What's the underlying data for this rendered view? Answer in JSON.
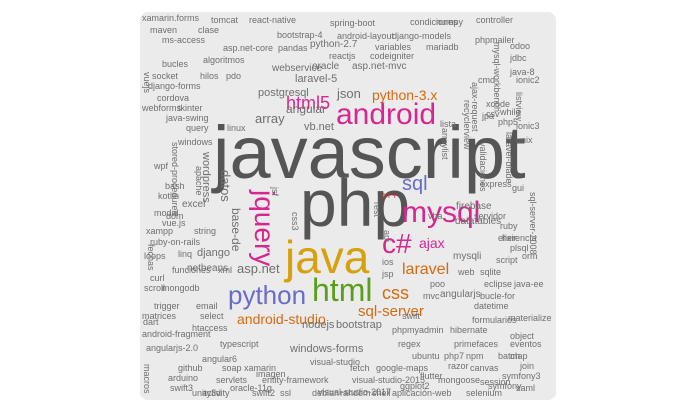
{
  "palette": {
    "gray": "#555555",
    "magenta": "#d6268f",
    "blue": "#6b6bc8",
    "gold": "#d6a10c",
    "green": "#5a9e1a",
    "orange": "#d66a11",
    "red": "#c9322a",
    "small": "#6f6f6f"
  },
  "words": [
    {
      "text": "javascript",
      "c": "gray"
    },
    {
      "text": "php",
      "c": "gray"
    },
    {
      "text": "java",
      "c": "gold"
    },
    {
      "text": "android",
      "c": "magenta"
    },
    {
      "text": "mysql",
      "c": "magenta"
    },
    {
      "text": "html",
      "c": "green"
    },
    {
      "text": "c#",
      "c": "magenta"
    },
    {
      "text": "python",
      "c": "blue"
    },
    {
      "text": "jquery",
      "c": "magenta"
    },
    {
      "text": "sql",
      "c": "blue"
    },
    {
      "text": "css",
      "c": "orange"
    },
    {
      "text": "html5",
      "c": "magenta"
    },
    {
      "text": "laravel",
      "c": "orange"
    },
    {
      "text": "ajax",
      "c": "magenta"
    },
    {
      "text": "sql-server",
      "c": "orange"
    },
    {
      "text": "android-studio",
      "c": "orange"
    },
    {
      "text": "python-3.x",
      "c": "orange"
    },
    {
      "text": "asp.net",
      "c": "small"
    },
    {
      "text": "json",
      "c": "small"
    },
    {
      "text": "array",
      "c": "small"
    },
    {
      "text": "angular",
      "c": "small"
    },
    {
      "text": "datos",
      "c": "small"
    },
    {
      "text": "base-de",
      "c": "small"
    },
    {
      "text": "vb.net",
      "c": "small"
    },
    {
      "text": "c++",
      "c": "red"
    },
    {
      "text": "laravel-5",
      "c": "small"
    },
    {
      "text": "postgresql",
      "c": "small"
    },
    {
      "text": "bootstrap",
      "c": "small"
    },
    {
      "text": "nodejs",
      "c": "small"
    },
    {
      "text": "windows-forms",
      "c": "small"
    },
    {
      "text": "mysqli",
      "c": "small"
    },
    {
      "text": "datatables",
      "c": "small"
    },
    {
      "text": "firebase",
      "c": "small"
    },
    {
      "text": "angularjs",
      "c": "small"
    },
    {
      "text": "django",
      "c": "small"
    },
    {
      "text": "netbeans",
      "c": "small"
    },
    {
      "text": "excel",
      "c": "small"
    },
    {
      "text": "oracle",
      "c": "small"
    },
    {
      "text": "asp.net-mvc",
      "c": "small"
    },
    {
      "text": "webservice",
      "c": "small"
    },
    {
      "text": "python-2.7",
      "c": "small"
    },
    {
      "text": "reactjs",
      "c": "small"
    },
    {
      "text": "codeigniter",
      "c": "small"
    },
    {
      "text": "android-layout",
      "c": "small"
    },
    {
      "text": "django-models",
      "c": "small"
    },
    {
      "text": "bootstrap-4",
      "c": "small"
    },
    {
      "text": "condiciones",
      "c": "small"
    },
    {
      "text": "numpy",
      "c": "small"
    },
    {
      "text": "xamarin.forms",
      "c": "small"
    },
    {
      "text": "tomcat",
      "c": "small"
    },
    {
      "text": "react-native",
      "c": "small"
    },
    {
      "text": "spring-boot",
      "c": "small"
    },
    {
      "text": "maven",
      "c": "small"
    },
    {
      "text": "clase",
      "c": "small"
    },
    {
      "text": "ms-access",
      "c": "small"
    },
    {
      "text": "asp.net-core",
      "c": "small"
    },
    {
      "text": "pandas",
      "c": "small"
    },
    {
      "text": "variables",
      "c": "small"
    },
    {
      "text": "mariadb",
      "c": "small"
    },
    {
      "text": "algoritmos",
      "c": "small"
    },
    {
      "text": "bucles",
      "c": "small"
    },
    {
      "text": "socket",
      "c": "small"
    },
    {
      "text": "django-forms",
      "c": "small"
    },
    {
      "text": "hilos",
      "c": "small"
    },
    {
      "text": "pdo",
      "c": "small"
    },
    {
      "text": "linux",
      "c": "small"
    },
    {
      "text": "cordova",
      "c": "small"
    },
    {
      "text": "webforms",
      "c": "small"
    },
    {
      "text": "tkinter",
      "c": "small"
    },
    {
      "text": "java-swing",
      "c": "small"
    },
    {
      "text": "query",
      "c": "small"
    },
    {
      "text": "windows",
      "c": "small"
    },
    {
      "text": "wordpress",
      "c": "small"
    },
    {
      "text": "apache",
      "c": "small"
    },
    {
      "text": "stored-procedures",
      "c": "small"
    },
    {
      "text": "bash",
      "c": "small"
    },
    {
      "text": "kotlin",
      "c": "small"
    },
    {
      "text": "modal",
      "c": "small"
    },
    {
      "text": "vue.js",
      "c": "small"
    },
    {
      "text": "xampp",
      "c": "small"
    },
    {
      "text": "string",
      "c": "small"
    },
    {
      "text": "ruby-on-rails",
      "c": "small"
    },
    {
      "text": "linq",
      "c": "small"
    },
    {
      "text": "funciones",
      "c": "small"
    },
    {
      "text": "xml",
      "c": "small"
    },
    {
      "text": "mongodb",
      "c": "small"
    },
    {
      "text": "trigger",
      "c": "small"
    },
    {
      "text": "email",
      "c": "small"
    },
    {
      "text": "select",
      "c": "small"
    },
    {
      "text": "matrices",
      "c": "small"
    },
    {
      "text": "htaccess",
      "c": "small"
    },
    {
      "text": "android-fragment",
      "c": "small"
    },
    {
      "text": "angularjs-2.0",
      "c": "small"
    },
    {
      "text": "typescript",
      "c": "small"
    },
    {
      "text": "angular6",
      "c": "small"
    },
    {
      "text": "github",
      "c": "small"
    },
    {
      "text": "soap",
      "c": "small"
    },
    {
      "text": "xamarin",
      "c": "small"
    },
    {
      "text": "arduino",
      "c": "small"
    },
    {
      "text": "swift3",
      "c": "small"
    },
    {
      "text": "servlets",
      "c": "small"
    },
    {
      "text": "unity3d",
      "c": "small"
    },
    {
      "text": "swift2",
      "c": "small"
    },
    {
      "text": "oracle-11g",
      "c": "small"
    },
    {
      "text": "entity-framework",
      "c": "small"
    },
    {
      "text": "visual-studio",
      "c": "small"
    },
    {
      "text": "visual-studio-2017",
      "c": "small"
    },
    {
      "text": "visual-studio-2015",
      "c": "small"
    },
    {
      "text": "google-maps",
      "c": "small"
    },
    {
      "text": "ubuntu",
      "c": "small"
    },
    {
      "text": "shell",
      "c": "small"
    },
    {
      "text": "aplicación-web",
      "c": "small"
    },
    {
      "text": "regex",
      "c": "small"
    },
    {
      "text": "phpmyadmin",
      "c": "small"
    },
    {
      "text": "php7",
      "c": "small"
    },
    {
      "text": "razor",
      "c": "small"
    },
    {
      "text": "canvas",
      "c": "small"
    },
    {
      "text": "mongoose",
      "c": "small"
    },
    {
      "text": "session",
      "c": "small"
    },
    {
      "text": "selenium",
      "c": "small"
    },
    {
      "text": "primefaces",
      "c": "small"
    },
    {
      "text": "npm",
      "c": "small"
    },
    {
      "text": "batch",
      "c": "small"
    },
    {
      "text": "eventos",
      "c": "small"
    },
    {
      "text": "hibernate",
      "c": "small"
    },
    {
      "text": "formularios",
      "c": "small"
    },
    {
      "text": "datetime",
      "c": "small"
    },
    {
      "text": "bucle-for",
      "c": "small"
    },
    {
      "text": "eclipse",
      "c": "small"
    },
    {
      "text": "java-ee",
      "c": "small"
    },
    {
      "text": "sqlite",
      "c": "small"
    },
    {
      "text": "web",
      "c": "small"
    },
    {
      "text": "script",
      "c": "small"
    },
    {
      "text": "servidor",
      "c": "small"
    },
    {
      "text": "ruby",
      "c": "small"
    },
    {
      "text": "express",
      "c": "small"
    },
    {
      "text": "swift",
      "c": "small"
    },
    {
      "text": "poo",
      "c": "small"
    },
    {
      "text": "mvc",
      "c": "small"
    },
    {
      "text": "jsp",
      "c": "small"
    },
    {
      "text": "ios",
      "c": "small"
    },
    {
      "text": "api",
      "c": "small"
    },
    {
      "text": "css3",
      "c": "small"
    },
    {
      "text": "jsf",
      "c": "small"
    },
    {
      "text": "rest",
      "c": "small"
    },
    {
      "text": "xcode",
      "c": "small"
    },
    {
      "text": "csv",
      "c": "small"
    },
    {
      "text": "cmd",
      "c": "small"
    },
    {
      "text": "lista",
      "c": "small"
    },
    {
      "text": "jpa",
      "c": "small"
    },
    {
      "text": "while",
      "c": "small"
    },
    {
      "text": "php5",
      "c": "small"
    },
    {
      "text": "arraylist",
      "c": "small"
    },
    {
      "text": "vba",
      "c": "small"
    },
    {
      "text": "gui",
      "c": "small"
    },
    {
      "text": "ionic3",
      "c": "small"
    },
    {
      "text": "controller",
      "c": "small"
    },
    {
      "text": "phpmailer",
      "c": "small"
    },
    {
      "text": "odoo",
      "c": "small"
    },
    {
      "text": "unix",
      "c": "small"
    },
    {
      "text": "laravel-blade",
      "c": "small"
    },
    {
      "text": "plsql",
      "c": "small"
    },
    {
      "text": "elixir",
      "c": "small"
    },
    {
      "text": "dart",
      "c": "small"
    },
    {
      "text": "symfony",
      "c": "small"
    },
    {
      "text": "xaml",
      "c": "small"
    },
    {
      "text": "materialize",
      "c": "small"
    },
    {
      "text": "object",
      "c": "small"
    },
    {
      "text": "map",
      "c": "small"
    },
    {
      "text": "join",
      "c": "small"
    },
    {
      "text": "symfony3",
      "c": "small"
    },
    {
      "text": "activity",
      "c": "small"
    },
    {
      "text": "debian",
      "c": "small"
    },
    {
      "text": "random",
      "c": "small"
    },
    {
      "text": "ssl",
      "c": "small"
    },
    {
      "text": "fetch",
      "c": "small"
    },
    {
      "text": "flutter",
      "c": "small"
    },
    {
      "text": "ggplot2",
      "c": "small"
    },
    {
      "text": "sql-server-2008",
      "c": "small"
    },
    {
      "text": "macros",
      "c": "small"
    },
    {
      "text": "vuejs",
      "c": "small"
    },
    {
      "text": "wpf",
      "c": "small"
    },
    {
      "text": "dom",
      "c": "small"
    },
    {
      "text": "jdbc",
      "c": "small"
    },
    {
      "text": "ionic2",
      "c": "small"
    },
    {
      "text": "recyclerview",
      "c": "small"
    },
    {
      "text": "ajax-request",
      "c": "small"
    },
    {
      "text": "mysql-workbench",
      "c": "small"
    },
    {
      "text": "fechas",
      "c": "small"
    },
    {
      "text": "scroll",
      "c": "small"
    },
    {
      "text": "herencia",
      "c": "small"
    },
    {
      "text": "orm",
      "c": "small"
    },
    {
      "text": "curl",
      "c": "small"
    },
    {
      "text": "loops",
      "c": "small"
    },
    {
      "text": "imagen",
      "c": "small"
    },
    {
      "text": "java-8",
      "c": "small"
    },
    {
      "text": "listview",
      "c": "small"
    },
    {
      "text": "validaciones",
      "c": "small"
    }
  ]
}
